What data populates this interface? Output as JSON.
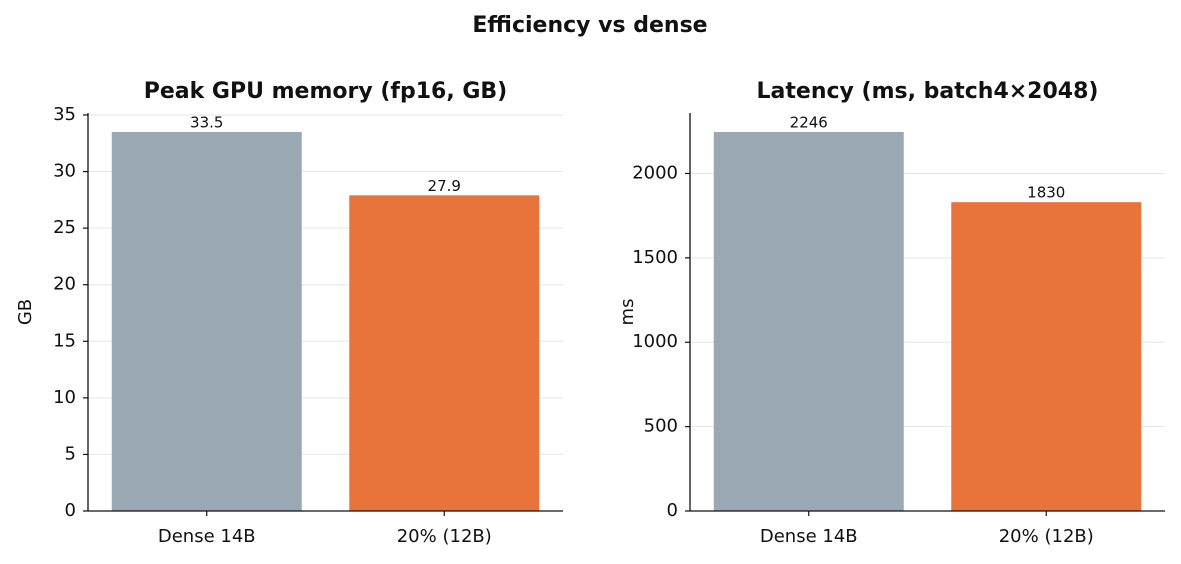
{
  "title": "Efficiency vs dense",
  "chart_data": [
    {
      "type": "bar",
      "title": "Peak GPU memory (fp16, GB)",
      "ylabel": "GB",
      "categories": [
        "Dense 14B",
        "20% (12B)"
      ],
      "values": [
        33.5,
        27.9
      ],
      "colors": [
        "#9aa8b4",
        "#e8743b"
      ],
      "ylim": [
        0,
        35.175
      ],
      "yticks": [
        0,
        5,
        10,
        15,
        20,
        25,
        30,
        35
      ],
      "grid": true
    },
    {
      "type": "bar",
      "title": "Latency (ms, batch4×2048)",
      "ylabel": "ms",
      "categories": [
        "Dense 14B",
        "20% (12B)"
      ],
      "values": [
        2246,
        1830
      ],
      "colors": [
        "#9aa8b4",
        "#e8743b"
      ],
      "ylim": [
        0,
        2358.3
      ],
      "yticks": [
        0,
        500,
        1000,
        1500,
        2000
      ],
      "grid": true
    }
  ]
}
